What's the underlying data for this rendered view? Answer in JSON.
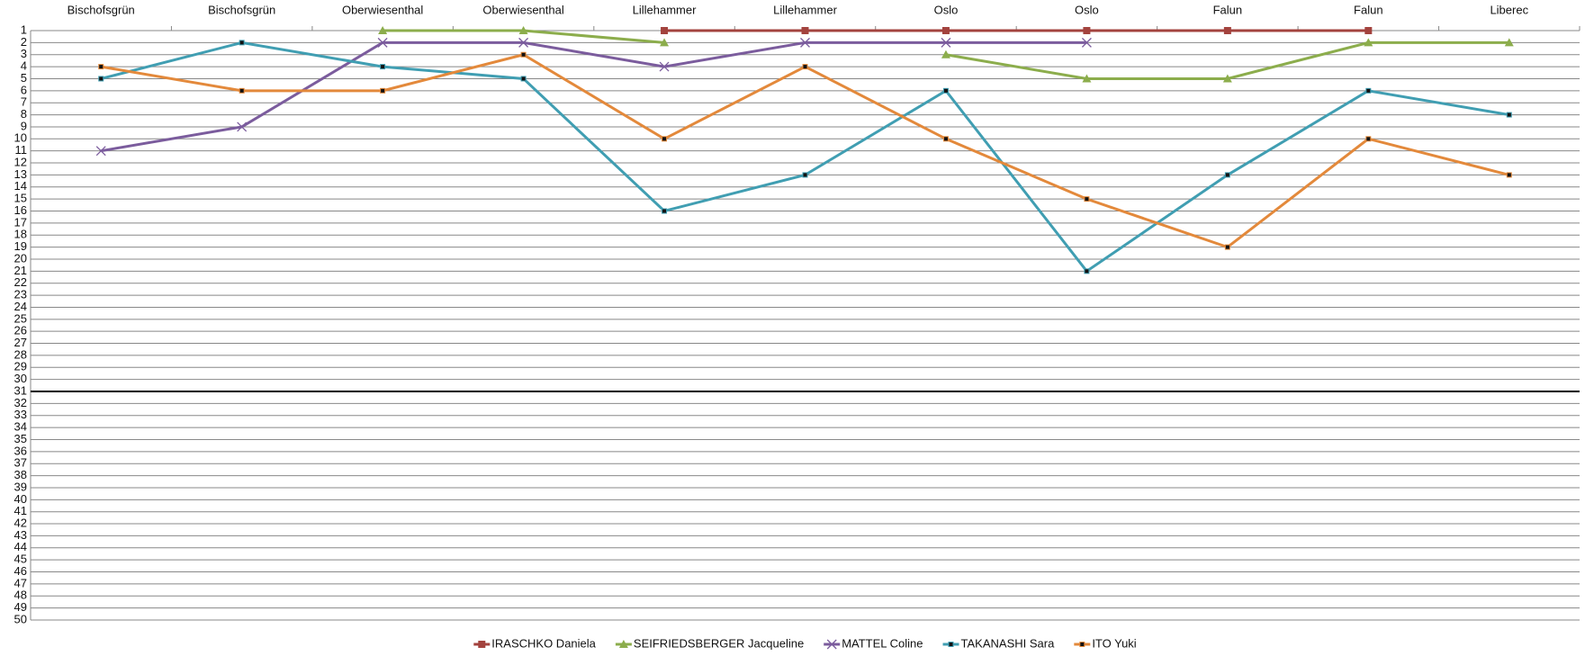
{
  "chart_data": {
    "type": "line",
    "categories": [
      "Bischofsgrün",
      "Bischofsgrün",
      "Oberwiesenthal",
      "Oberwiesenthal",
      "Lillehammer",
      "Lillehammer",
      "Oslo",
      "Oslo",
      "Falun",
      "Falun",
      "Liberec"
    ],
    "series": [
      {
        "name": "IRASCHKO Daniela",
        "color": "#a3433e",
        "marker": "square",
        "values": [
          null,
          null,
          null,
          null,
          1,
          1,
          1,
          1,
          1,
          1,
          null
        ]
      },
      {
        "name": "SEIFRIEDSBERGER Jacqueline",
        "color": "#8cad4c",
        "marker": "triangle",
        "values": [
          null,
          null,
          1,
          1,
          2,
          null,
          3,
          5,
          5,
          2,
          2
        ]
      },
      {
        "name": "MATTEL Coline",
        "color": "#7b5c9d",
        "marker": "x",
        "values": [
          11,
          9,
          2,
          2,
          4,
          2,
          2,
          2,
          null,
          null,
          null
        ]
      },
      {
        "name": "TAKANASHI Sara",
        "color": "#409eb2",
        "marker": "dot",
        "values": [
          5,
          2,
          4,
          5,
          16,
          13,
          6,
          21,
          13,
          6,
          8
        ]
      },
      {
        "name": "ITO Yuki",
        "color": "#e3893b",
        "marker": "dot",
        "values": [
          4,
          6,
          6,
          3,
          10,
          4,
          10,
          15,
          19,
          10,
          13
        ]
      }
    ],
    "ylim": [
      1,
      50
    ],
    "y_inverted": true,
    "x_axis_position": "top",
    "yticks": [
      1,
      2,
      3,
      4,
      5,
      6,
      7,
      8,
      9,
      10,
      11,
      12,
      13,
      14,
      15,
      16,
      17,
      18,
      19,
      20,
      21,
      22,
      23,
      24,
      25,
      26,
      27,
      28,
      29,
      30,
      31,
      32,
      33,
      34,
      35,
      36,
      37,
      38,
      39,
      40,
      41,
      42,
      43,
      44,
      45,
      46,
      47,
      48,
      49,
      50
    ],
    "reference_line": 31,
    "grid": true,
    "legend": "bottom"
  }
}
